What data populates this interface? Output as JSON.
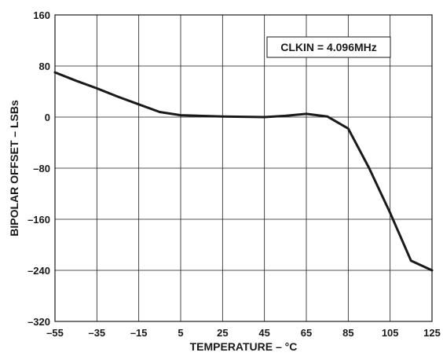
{
  "chart_data": {
    "type": "line",
    "xlabel": "TEMPERATURE – °C",
    "ylabel": "BIPOLAR OFFSET – LSBs",
    "annotation": "CLKIN = 4.096MHz",
    "xlim": [
      -55,
      125
    ],
    "ylim": [
      -320,
      160
    ],
    "xticks": [
      -55,
      -35,
      -15,
      5,
      25,
      45,
      65,
      85,
      105,
      125
    ],
    "xtick_labels": [
      "–55",
      "–35",
      "–15",
      "5",
      "25",
      "45",
      "65",
      "85",
      "105",
      "125"
    ],
    "yticks": [
      -320,
      -240,
      -160,
      -80,
      0,
      80,
      160
    ],
    "ytick_labels": [
      "–320",
      "–240",
      "–160",
      "–80",
      "0",
      "80",
      "160"
    ],
    "grid": true,
    "series": [
      {
        "color": "#1a1a1a",
        "x": [
          -55,
          -45,
          -35,
          -25,
          -15,
          -5,
          5,
          25,
          45,
          55,
          65,
          75,
          85,
          95,
          105,
          115,
          125
        ],
        "y": [
          70,
          57,
          45,
          32,
          20,
          8,
          3,
          1,
          0,
          2,
          5,
          1,
          -18,
          -80,
          -150,
          -225,
          -240
        ]
      }
    ]
  }
}
